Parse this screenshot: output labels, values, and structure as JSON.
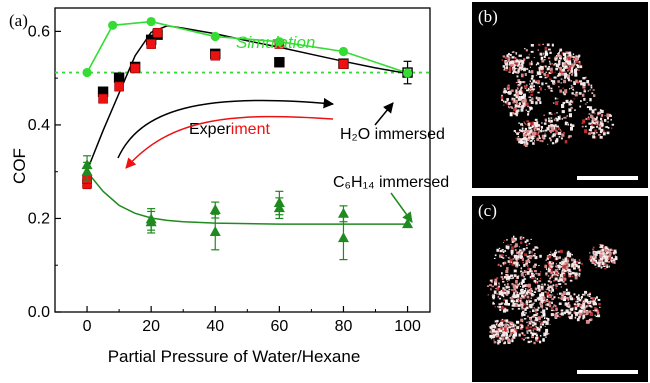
{
  "panels": {
    "a": "(a)",
    "b": "(b)",
    "c": "(c)"
  },
  "colors": {
    "simulation": "#33dd33",
    "experiment_forward": "#000000",
    "experiment_backward": "#ee1111",
    "hexane": "#1f8a1f",
    "micrograph_bg": "#000000",
    "scale_bar": "#ffffff"
  },
  "chart_data": {
    "type": "scatter",
    "xlabel": "Partial Pressure of Water/Hexane",
    "ylabel": "COF",
    "xlim": [
      -10,
      107
    ],
    "ylim": [
      0.0,
      0.65
    ],
    "xticks": [
      0,
      20,
      40,
      60,
      80,
      100
    ],
    "yticks": [
      0.0,
      0.2,
      0.4,
      0.6
    ],
    "ytick_labels": [
      "0.0",
      "0.2",
      "0.4",
      "0.6"
    ],
    "grid": false,
    "reference_line": {
      "y": 0.512,
      "style": "dotted",
      "color": "#33dd33"
    },
    "series": [
      {
        "name": "Simulation",
        "marker": "circle",
        "x": [
          0,
          8,
          20,
          40,
          60,
          80,
          100
        ],
        "y": [
          0.512,
          0.613,
          0.621,
          0.589,
          0.578,
          0.557,
          0.511
        ]
      },
      {
        "marker": "square",
        "color": "#000000",
        "x": [
          5,
          10,
          15,
          20,
          22,
          40,
          60,
          80,
          100
        ],
        "y": [
          0.471,
          0.501,
          0.524,
          0.582,
          0.593,
          0.552,
          0.534,
          0.531,
          0.512
        ],
        "err": [
          0.009,
          0.009,
          0.009,
          0.009,
          0.009,
          0.008,
          0.007,
          0.007,
          0.024
        ]
      },
      {
        "marker": "square",
        "color": "#ee1111",
        "x": [
          0,
          0,
          5,
          10,
          15,
          20,
          22,
          40,
          60,
          80
        ],
        "y": [
          0.274,
          0.284,
          0.456,
          0.482,
          0.521,
          0.573,
          0.597,
          0.548,
          0.573,
          0.53
        ],
        "err": [
          0.01,
          0.01,
          0.009,
          0.009,
          0.009,
          0.009,
          0.009,
          0.008,
          0.008,
          0.007
        ]
      },
      {
        "marker": "triangle",
        "x": [
          0,
          0,
          20,
          20,
          40,
          40,
          60,
          60,
          80,
          80,
          100
        ],
        "y": [
          0.314,
          0.3,
          0.198,
          0.192,
          0.218,
          0.171,
          0.233,
          0.222,
          0.21,
          0.158,
          0.188
        ],
        "err": [
          0.02,
          0.02,
          0.023,
          0.023,
          0.017,
          0.038,
          0.025,
          0.022,
          0.017,
          0.046,
          0.0
        ]
      }
    ],
    "fits": [
      {
        "x": [
          0,
          5,
          10,
          15,
          20,
          25,
          30,
          40,
          50,
          60,
          70,
          80,
          90,
          100
        ],
        "y": [
          0.302,
          0.388,
          0.468,
          0.548,
          0.598,
          0.612,
          0.607,
          0.595,
          0.58,
          0.566,
          0.551,
          0.536,
          0.522,
          0.51
        ]
      },
      {
        "x": [
          0,
          5,
          10,
          15,
          20,
          25,
          30,
          40,
          60,
          80,
          100
        ],
        "y": [
          0.3,
          0.258,
          0.228,
          0.211,
          0.201,
          0.196,
          0.193,
          0.19,
          0.188,
          0.188,
          0.188
        ]
      }
    ],
    "annotations": {
      "experiment_part1": "Exper",
      "experiment_part2": "iment",
      "water": "H₂O immersed",
      "hexane": "C₆H₁₄ immersed"
    }
  }
}
